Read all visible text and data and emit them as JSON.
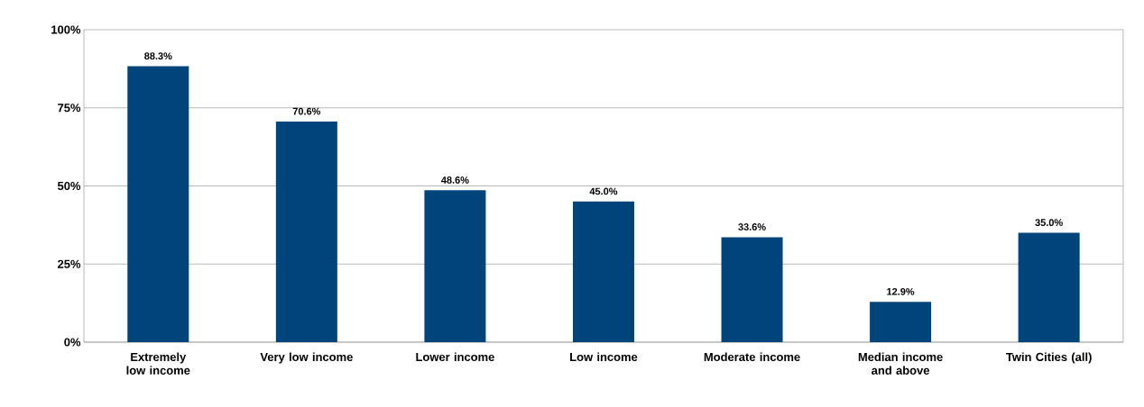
{
  "chart_data": {
    "type": "bar",
    "categories": [
      "Extremely low income",
      "Very low income",
      "Lower income",
      "Low income",
      "Moderate income",
      "Median income and above",
      "Twin Cities (all)"
    ],
    "values": [
      88.3,
      70.6,
      48.6,
      45.0,
      33.6,
      12.9,
      35.0
    ],
    "value_labels": [
      "88.3%",
      "70.6%",
      "48.6%",
      "45.0%",
      "33.6%",
      "12.9%",
      "35.0%"
    ],
    "color": "#00447c",
    "ylim": [
      0,
      100
    ],
    "yticks": [
      {
        "value": 0,
        "label": "0%"
      },
      {
        "value": 25,
        "label": "25%"
      },
      {
        "value": 50,
        "label": "50%"
      },
      {
        "value": 75,
        "label": "75%"
      },
      {
        "value": 100,
        "label": "100%"
      }
    ],
    "grid": "y"
  }
}
